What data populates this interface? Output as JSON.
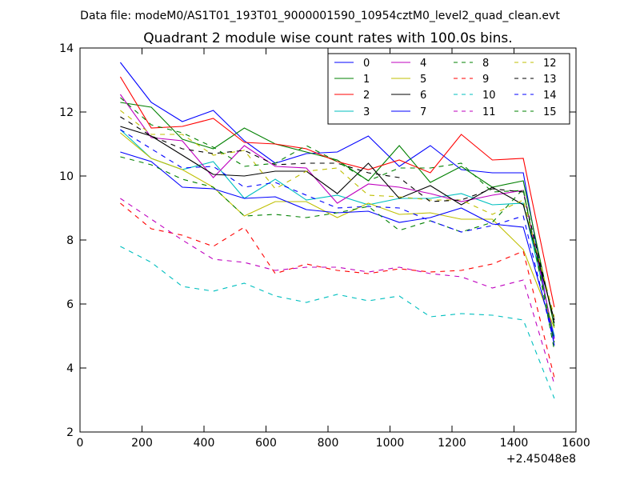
{
  "suptitle": "Data file: modeM0/AS1T01_193T01_9000001590_10954cztM0_level2_quad_clean.evt",
  "chart_data": {
    "type": "line",
    "title": "Quadrant 2 module wise count rates with 100.0s bins.",
    "xlabel": "",
    "ylabel": "",
    "x_offset_label": "+2.45048e8",
    "xlim": [
      0,
      1600
    ],
    "ylim": [
      2,
      14
    ],
    "xticks": [
      0,
      200,
      400,
      600,
      800,
      1000,
      1200,
      1400,
      1600
    ],
    "yticks": [
      2,
      4,
      6,
      8,
      10,
      12,
      14
    ],
    "grid": false,
    "legend_position": "top-right",
    "x": [
      130,
      230,
      330,
      430,
      530,
      630,
      730,
      830,
      930,
      1030,
      1130,
      1230,
      1330,
      1430,
      1530
    ],
    "series": [
      {
        "name": "0",
        "color": "#0000ff",
        "dash": "solid",
        "values": [
          13.55,
          12.3,
          11.7,
          12.05,
          11.1,
          10.4,
          10.7,
          10.75,
          11.25,
          10.3,
          10.95,
          10.2,
          10.1,
          10.1,
          4.7
        ]
      },
      {
        "name": "1",
        "color": "#008000",
        "dash": "solid",
        "values": [
          12.3,
          12.15,
          11.15,
          10.85,
          11.5,
          11.0,
          10.75,
          10.5,
          9.85,
          10.95,
          9.8,
          10.3,
          9.65,
          9.85,
          5.3
        ]
      },
      {
        "name": "2",
        "color": "#ff0000",
        "dash": "solid",
        "values": [
          13.1,
          11.5,
          11.55,
          11.8,
          11.05,
          11.0,
          10.85,
          10.45,
          10.2,
          10.5,
          10.1,
          11.3,
          10.5,
          10.55,
          5.9
        ]
      },
      {
        "name": "3",
        "color": "#00bfbf",
        "dash": "solid",
        "values": [
          11.45,
          10.55,
          10.2,
          10.45,
          9.3,
          9.9,
          9.25,
          9.4,
          9.1,
          9.3,
          9.3,
          9.45,
          9.1,
          9.15,
          5.0
        ]
      },
      {
        "name": "4",
        "color": "#bf00bf",
        "dash": "solid",
        "values": [
          12.55,
          11.2,
          11.1,
          9.95,
          10.95,
          10.3,
          10.25,
          9.15,
          9.75,
          9.65,
          9.45,
          9.2,
          9.4,
          9.55,
          4.9
        ]
      },
      {
        "name": "5",
        "color": "#bfbf00",
        "dash": "solid",
        "values": [
          11.35,
          10.55,
          10.2,
          9.65,
          8.75,
          9.2,
          9.2,
          8.7,
          9.15,
          8.8,
          8.85,
          8.65,
          8.65,
          7.7,
          5.25
        ]
      },
      {
        "name": "6",
        "color": "#000000",
        "dash": "solid",
        "values": [
          11.55,
          11.25,
          10.65,
          10.05,
          10.0,
          10.15,
          10.15,
          9.45,
          10.4,
          9.3,
          9.7,
          9.1,
          9.65,
          9.1,
          5.5
        ]
      },
      {
        "name": "7",
        "color": "#0000ff",
        "dash": "solid",
        "values": [
          10.75,
          10.45,
          9.65,
          9.6,
          9.3,
          9.35,
          8.95,
          8.85,
          8.9,
          8.55,
          8.7,
          9.0,
          8.5,
          8.4,
          4.95
        ]
      },
      {
        "name": "8",
        "color": "#008000",
        "dash": "dashed",
        "values": [
          10.6,
          10.35,
          9.9,
          9.65,
          8.75,
          8.8,
          8.7,
          8.85,
          9.05,
          8.3,
          8.6,
          8.25,
          8.55,
          9.6,
          4.55
        ]
      },
      {
        "name": "9",
        "color": "#ff0000",
        "dash": "dashed",
        "values": [
          9.15,
          8.35,
          8.15,
          7.8,
          8.4,
          6.95,
          7.25,
          7.05,
          6.95,
          7.1,
          7.0,
          7.05,
          7.25,
          7.65,
          3.7
        ]
      },
      {
        "name": "10",
        "color": "#00bfbf",
        "dash": "dashed",
        "values": [
          7.8,
          7.3,
          6.55,
          6.4,
          6.65,
          6.25,
          6.05,
          6.3,
          6.1,
          6.25,
          5.6,
          5.7,
          5.65,
          5.5,
          3.05
        ]
      },
      {
        "name": "11",
        "color": "#bf00bf",
        "dash": "dashed",
        "values": [
          9.3,
          8.65,
          8.0,
          7.4,
          7.3,
          7.05,
          7.15,
          7.15,
          7.0,
          7.15,
          6.95,
          6.85,
          6.5,
          6.75,
          3.5
        ]
      },
      {
        "name": "12",
        "color": "#bfbf00",
        "dash": "dashed",
        "values": [
          12.05,
          11.3,
          11.3,
          10.65,
          10.8,
          9.6,
          10.15,
          10.25,
          9.4,
          9.35,
          9.25,
          9.25,
          8.8,
          9.25,
          5.6
        ]
      },
      {
        "name": "13",
        "color": "#000000",
        "dash": "dashed",
        "values": [
          11.85,
          11.25,
          10.85,
          10.7,
          10.8,
          10.35,
          10.4,
          10.4,
          10.1,
          9.95,
          9.2,
          9.25,
          9.6,
          9.5,
          5.4
        ]
      },
      {
        "name": "14",
        "color": "#0000ff",
        "dash": "dashed",
        "values": [
          11.45,
          10.85,
          10.25,
          10.3,
          9.65,
          9.8,
          9.4,
          9.0,
          9.05,
          9.0,
          8.6,
          8.25,
          8.45,
          8.75,
          4.75
        ]
      },
      {
        "name": "15",
        "color": "#008000",
        "dash": "dashed",
        "values": [
          12.45,
          11.6,
          11.35,
          10.9,
          10.3,
          10.4,
          10.95,
          10.45,
          9.85,
          10.25,
          10.25,
          10.4,
          9.5,
          9.55,
          4.8
        ]
      }
    ]
  }
}
